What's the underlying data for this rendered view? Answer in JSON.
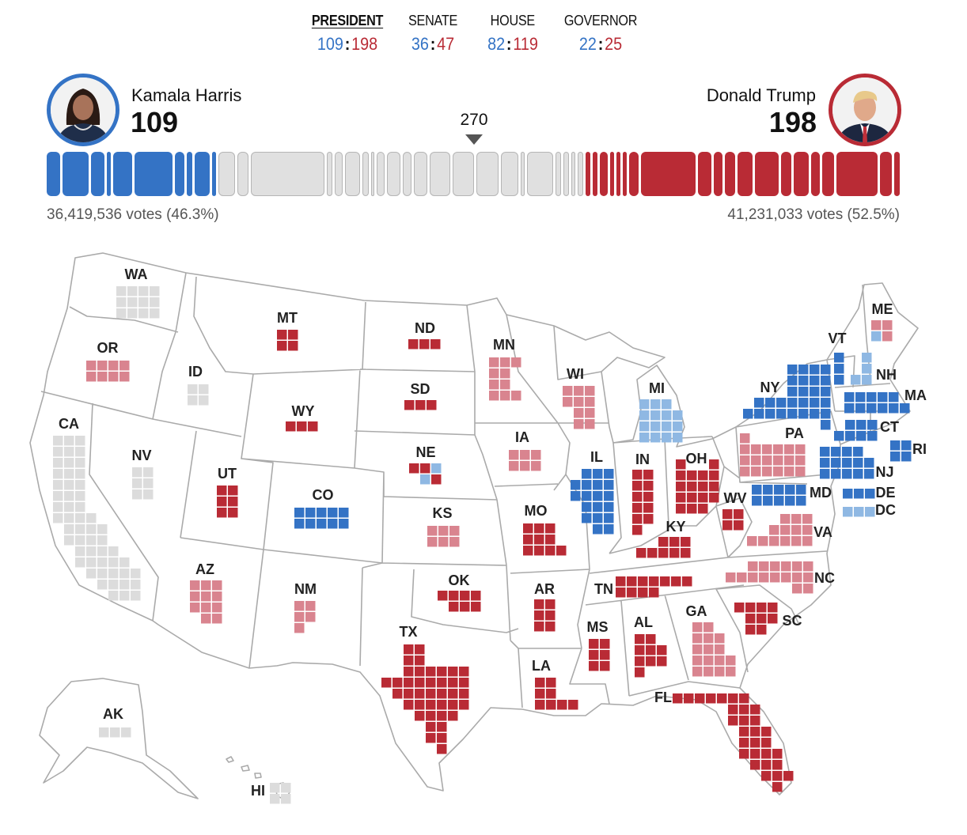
{
  "tabs": [
    {
      "label": "PRESIDENT",
      "dem": "109",
      "rep": "198",
      "active": true
    },
    {
      "label": "SENATE",
      "dem": "36",
      "rep": "47",
      "active": false
    },
    {
      "label": "HOUSE",
      "dem": "82",
      "rep": "119",
      "active": false
    },
    {
      "label": "GOVERNOR",
      "dem": "22",
      "rep": "25",
      "active": false
    }
  ],
  "score_separator": ":",
  "harris": {
    "name": "Kamala Harris",
    "electoral_votes": "109",
    "votes": "36,419,536 votes (46.3%)",
    "photo_icon": "candidate-portrait"
  },
  "trump": {
    "name": "Donald Trump",
    "electoral_votes": "198",
    "votes": "41,231,033 votes (52.5%)",
    "photo_icon": "candidate-portrait"
  },
  "threshold": "270",
  "total_electoral_votes": 538,
  "colors": {
    "D": "#3473c5",
    "LD": "#8fb8e3",
    "R": "#b92b35",
    "LR": "#d9848f",
    "none": "#dcdcdc",
    "bar_gray": "#e0e0e0",
    "border": "#aaaaaa"
  },
  "states": [
    {
      "id": "WA",
      "ev": 12,
      "status": "none"
    },
    {
      "id": "OR",
      "ev": 8,
      "status": "LR"
    },
    {
      "id": "CA",
      "ev": 54,
      "status": "none"
    },
    {
      "id": "ID",
      "ev": 4,
      "status": "none"
    },
    {
      "id": "NV",
      "ev": 6,
      "status": "none"
    },
    {
      "id": "MT",
      "ev": 4,
      "status": "R"
    },
    {
      "id": "WY",
      "ev": 3,
      "status": "R"
    },
    {
      "id": "UT",
      "ev": 6,
      "status": "R"
    },
    {
      "id": "AZ",
      "ev": 11,
      "status": "LR"
    },
    {
      "id": "CO",
      "ev": 10,
      "status": "D"
    },
    {
      "id": "NM",
      "ev": 5,
      "status": "LR"
    },
    {
      "id": "ND",
      "ev": 3,
      "status": "R"
    },
    {
      "id": "SD",
      "ev": 3,
      "status": "R"
    },
    {
      "id": "NE",
      "ev": 5,
      "status": "R",
      "squares": [
        "R",
        "R",
        "LD",
        "LD",
        "R"
      ]
    },
    {
      "id": "KS",
      "ev": 6,
      "status": "LR"
    },
    {
      "id": "OK",
      "ev": 7,
      "status": "R"
    },
    {
      "id": "TX",
      "ev": 40,
      "status": "R"
    },
    {
      "id": "MN",
      "ev": 10,
      "status": "LR"
    },
    {
      "id": "IA",
      "ev": 6,
      "status": "LR"
    },
    {
      "id": "MO",
      "ev": 10,
      "status": "R"
    },
    {
      "id": "AR",
      "ev": 6,
      "status": "R"
    },
    {
      "id": "LA",
      "ev": 8,
      "status": "R"
    },
    {
      "id": "WI",
      "ev": 10,
      "status": "LR"
    },
    {
      "id": "IL",
      "ev": 19,
      "status": "D"
    },
    {
      "id": "MI",
      "ev": 15,
      "status": "LD"
    },
    {
      "id": "IN",
      "ev": 11,
      "status": "R"
    },
    {
      "id": "OH",
      "ev": 17,
      "status": "R"
    },
    {
      "id": "KY",
      "ev": 8,
      "status": "R"
    },
    {
      "id": "TN",
      "ev": 11,
      "status": "R"
    },
    {
      "id": "MS",
      "ev": 6,
      "status": "R"
    },
    {
      "id": "AL",
      "ev": 9,
      "status": "R"
    },
    {
      "id": "GA",
      "ev": 16,
      "status": "LR"
    },
    {
      "id": "FL",
      "ev": 30,
      "status": "R"
    },
    {
      "id": "SC",
      "ev": 9,
      "status": "R"
    },
    {
      "id": "NC",
      "ev": 16,
      "status": "LR"
    },
    {
      "id": "VA",
      "ev": 13,
      "status": "LR"
    },
    {
      "id": "WV",
      "ev": 4,
      "status": "R"
    },
    {
      "id": "MD",
      "ev": 10,
      "status": "D"
    },
    {
      "id": "DE",
      "ev": 3,
      "status": "D"
    },
    {
      "id": "DC",
      "ev": 3,
      "status": "LD"
    },
    {
      "id": "PA",
      "ev": 19,
      "status": "LR"
    },
    {
      "id": "NJ",
      "ev": 14,
      "status": "D"
    },
    {
      "id": "NY",
      "ev": 28,
      "status": "D"
    },
    {
      "id": "CT",
      "ev": 7,
      "status": "D"
    },
    {
      "id": "RI",
      "ev": 4,
      "status": "D"
    },
    {
      "id": "MA",
      "ev": 11,
      "status": "D"
    },
    {
      "id": "VT",
      "ev": 3,
      "status": "D"
    },
    {
      "id": "NH",
      "ev": 4,
      "status": "LD"
    },
    {
      "id": "ME",
      "ev": 4,
      "status": "LR",
      "squares": [
        "LR",
        "LR",
        "LD",
        "LR"
      ]
    },
    {
      "id": "AK",
      "ev": 3,
      "status": "none"
    },
    {
      "id": "HI",
      "ev": 4,
      "status": "none"
    }
  ]
}
